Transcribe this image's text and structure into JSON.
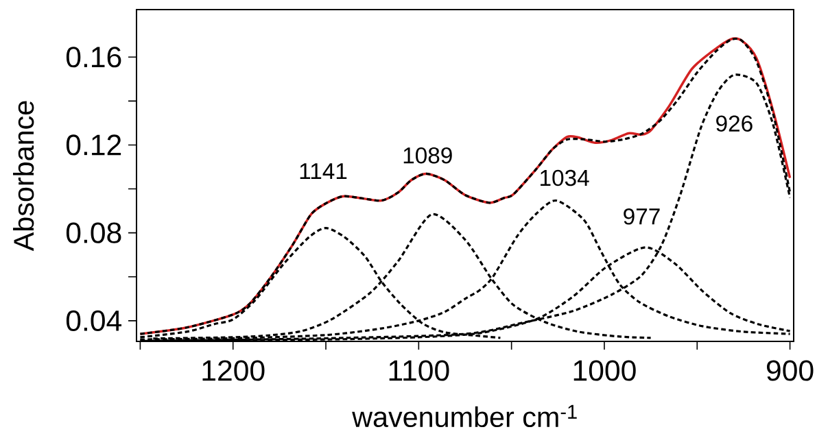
{
  "chart_data": {
    "type": "line",
    "xlabel": "wavenumber cm$^{-1}$",
    "ylabel": "Absorbance",
    "xlim": [
      1252,
      898
    ],
    "ylim": [
      0.0306,
      0.1816
    ],
    "xticks": [
      {
        "value": 1250,
        "label": null
      },
      1200,
      {
        "value": 1150,
        "label": null
      },
      1100,
      {
        "value": 1050,
        "label": null
      },
      1000,
      {
        "value": 950,
        "label": null
      },
      900
    ],
    "yticks": [
      0.04,
      {
        "value": 0.06,
        "label": null
      },
      0.08,
      {
        "value": 0.1,
        "label": null
      },
      0.12,
      {
        "value": 0.14,
        "label": null
      },
      0.16
    ],
    "grid": false,
    "marker": "none",
    "series": [
      {
        "line_style": "solid",
        "color": "#d42222",
        "x": [
          1250,
          1225,
          1200,
          1191,
          1180,
          1168,
          1158,
          1150,
          1141,
          1132,
          1120,
          1111,
          1104,
          1096,
          1086,
          1075,
          1062,
          1054,
          1049,
          1037,
          1028,
          1020,
          1014,
          1005,
          996,
          987,
          980,
          975,
          965,
          953,
          942,
          932,
          926,
          918,
          909,
          900
        ],
        "values": [
          0.034,
          0.0369,
          0.0428,
          0.0478,
          0.0594,
          0.0744,
          0.0884,
          0.0934,
          0.0966,
          0.0959,
          0.0947,
          0.0984,
          0.104,
          0.1069,
          0.104,
          0.0972,
          0.0937,
          0.0959,
          0.0975,
          0.1087,
          0.118,
          0.1237,
          0.1234,
          0.121,
          0.1222,
          0.1253,
          0.1247,
          0.1266,
          0.1378,
          0.1544,
          0.1625,
          0.1681,
          0.1675,
          0.1594,
          0.1353,
          0.105
        ]
      },
      {
        "line_style": "dashed",
        "color": "#000000",
        "x": [
          1250,
          1225,
          1200,
          1191,
          1180,
          1168,
          1158,
          1150,
          1141,
          1132,
          1120,
          1111,
          1104,
          1096,
          1086,
          1075,
          1062,
          1054,
          1049,
          1037,
          1028,
          1020,
          1010,
          1000,
          990,
          980,
          970,
          960,
          950,
          940,
          932,
          926,
          918,
          909,
          900
        ],
        "values": [
          0.034,
          0.0369,
          0.0428,
          0.0478,
          0.0594,
          0.0744,
          0.0884,
          0.0934,
          0.0966,
          0.0959,
          0.0947,
          0.0984,
          0.104,
          0.1069,
          0.104,
          0.0972,
          0.0937,
          0.0959,
          0.0975,
          0.1087,
          0.118,
          0.1225,
          0.1225,
          0.1215,
          0.1225,
          0.125,
          0.131,
          0.141,
          0.153,
          0.1625,
          0.1678,
          0.1675,
          0.158,
          0.134,
          0.0985
        ]
      },
      {
        "line_style": "dashed",
        "color": "#000000",
        "x": [
          1250,
          1225,
          1210,
          1200,
          1188,
          1173,
          1159,
          1150,
          1140,
          1129,
          1120,
          1110,
          1098,
          1086,
          1070,
          1056
        ],
        "values": [
          0.0325,
          0.035,
          0.0385,
          0.0406,
          0.0494,
          0.0656,
          0.0781,
          0.0822,
          0.0781,
          0.0694,
          0.0578,
          0.0478,
          0.0388,
          0.0347,
          0.0333,
          0.0322
        ]
      },
      {
        "line_style": "dashed",
        "color": "#000000",
        "x": [
          1243,
          1200,
          1180,
          1163,
          1147,
          1126,
          1111,
          1093,
          1075,
          1061,
          1049,
          1032,
          1014,
          992,
          975
        ],
        "values": [
          0.0319,
          0.0325,
          0.0334,
          0.0353,
          0.0406,
          0.0528,
          0.0672,
          0.0884,
          0.0769,
          0.0594,
          0.0472,
          0.0394,
          0.035,
          0.0328,
          0.0322
        ]
      },
      {
        "line_style": "dashed",
        "color": "#000000",
        "x": [
          1250,
          1200,
          1150,
          1120,
          1100,
          1086,
          1075,
          1067,
          1060,
          1047,
          1037,
          1026,
          1011,
          1002,
          992,
          981,
          965,
          947,
          925,
          900
        ],
        "values": [
          0.0315,
          0.032,
          0.0335,
          0.0365,
          0.04,
          0.044,
          0.05,
          0.054,
          0.06,
          0.0784,
          0.0884,
          0.0947,
          0.0859,
          0.0719,
          0.0569,
          0.0484,
          0.0419,
          0.0375,
          0.035,
          0.034
        ]
      },
      {
        "line_style": "dashed",
        "color": "#000000",
        "x": [
          1250,
          1150,
          1100,
          1067,
          1037,
          1017,
          999,
          978,
          962,
          947,
          932,
          917,
          900
        ],
        "values": [
          0.031,
          0.0315,
          0.0325,
          0.0344,
          0.0406,
          0.0509,
          0.0644,
          0.0734,
          0.066,
          0.0534,
          0.0434,
          0.0384,
          0.0353
        ]
      },
      {
        "line_style": "dashed",
        "color": "#000000",
        "x": [
          1248,
          1150,
          1075,
          1044,
          1017,
          996,
          980,
          969,
          959,
          948,
          939,
          930,
          918,
          909,
          900
        ],
        "values": [
          0.0308,
          0.032,
          0.034,
          0.0391,
          0.0444,
          0.0519,
          0.0606,
          0.0747,
          0.0975,
          0.1278,
          0.1441,
          0.1519,
          0.1481,
          0.129,
          0.096
        ]
      }
    ],
    "annotations": [
      "1141",
      "1089",
      "1034",
      "977",
      "926"
    ]
  }
}
